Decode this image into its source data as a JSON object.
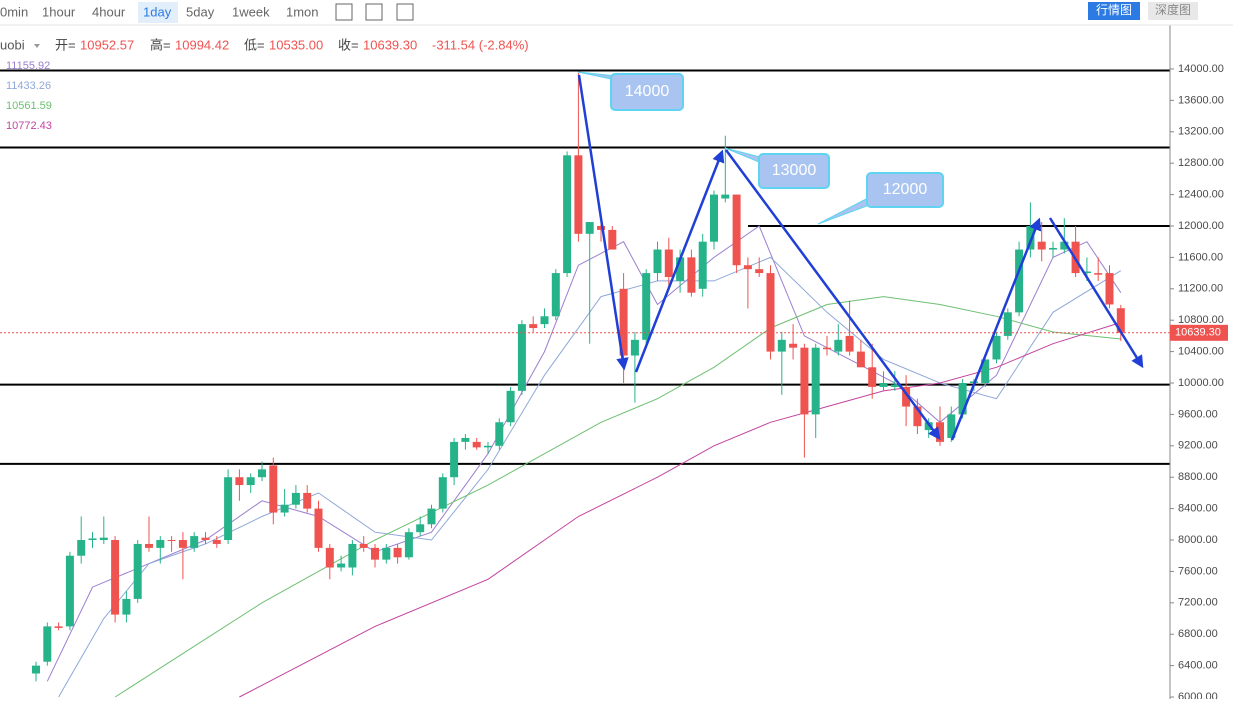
{
  "toolbar": {
    "intervals": [
      "0min",
      "1hour",
      "4hour",
      "1day",
      "5day",
      "1week",
      "1mon"
    ],
    "views": [
      "行情图",
      "深度图"
    ]
  },
  "header": {
    "exchange": "uobi",
    "labels": [
      "开=",
      "高=",
      "低=",
      "收="
    ],
    "values_text": [
      "10952.57",
      "10994.42",
      "10535.00",
      "10639.30"
    ],
    "change": "-311.54 (-2.84%)"
  },
  "chart_data": {
    "type": "candlestick",
    "up_color": "#26b38a",
    "down_color": "#ef5350",
    "ylim": [
      5975,
      14560
    ],
    "yticks": [
      {
        "value": 6000,
        "label": "6000.00"
      },
      {
        "value": 6400,
        "label": "6400.00"
      },
      {
        "value": 6800,
        "label": "6800.00"
      },
      {
        "value": 7200,
        "label": "7200.00"
      },
      {
        "value": 7600,
        "label": "7600.00"
      },
      {
        "value": 8000,
        "label": "8000.00"
      },
      {
        "value": 8400,
        "label": "8400.00"
      },
      {
        "value": 8800,
        "label": "8800.00"
      },
      {
        "value": 9200,
        "label": "9200.00"
      },
      {
        "value": 9600,
        "label": "9600.00"
      },
      {
        "value": 10000,
        "label": "10000.00"
      },
      {
        "value": 10400,
        "label": "10400.00"
      },
      {
        "value": 10800,
        "label": "10800.00"
      },
      {
        "value": 11200,
        "label": "11200.00"
      },
      {
        "value": 11600,
        "label": "11600.00"
      },
      {
        "value": 12000,
        "label": "12000.00"
      },
      {
        "value": 12400,
        "label": "12400.00"
      },
      {
        "value": 12800,
        "label": "12800.00"
      },
      {
        "value": 13200,
        "label": "13200.00"
      },
      {
        "value": 13600,
        "label": "13600.00"
      },
      {
        "value": 14000,
        "label": "14000.00"
      }
    ],
    "open": [
      6300,
      6450,
      6900,
      6900,
      7800,
      8000,
      8000,
      8000,
      7050,
      7250,
      7950,
      7900,
      8000,
      8000,
      7900,
      8030,
      8000,
      8000,
      8800,
      8700,
      8800,
      8950,
      8350,
      8450,
      8600,
      8400,
      7900,
      7650,
      7650,
      7950,
      7900,
      7750,
      7900,
      7780,
      8100,
      8200,
      8400,
      8800,
      9250,
      9250,
      9180,
      9200,
      9500,
      9900,
      10750,
      10750,
      10850,
      11400,
      12900,
      11900,
      12000,
      11950,
      11200,
      10350,
      10550,
      11400,
      11700,
      11300,
      11600,
      11200,
      11800,
      12350,
      12400,
      11500,
      11450,
      11400,
      10400,
      10500,
      10450,
      9600,
      10450,
      10400,
      10600,
      10400,
      10200,
      9950,
      9950,
      9950,
      9700,
      9400,
      9500,
      9300,
      9600,
      10000,
      10000,
      10300,
      10600,
      10900,
      11700,
      11800,
      11700,
      11700,
      11800,
      11400,
      11400,
      11400,
      10952.57
    ],
    "high": [
      6450,
      6950,
      6950,
      7850,
      8300,
      8100,
      8300,
      8050,
      7350,
      8000,
      8300,
      8050,
      8050,
      8100,
      8100,
      8100,
      8050,
      8900,
      8900,
      8850,
      9000,
      9050,
      8650,
      8700,
      8700,
      8500,
      7950,
      7800,
      8000,
      8050,
      7950,
      7950,
      7950,
      8150,
      8300,
      8450,
      8850,
      9300,
      9350,
      9300,
      9250,
      9550,
      9950,
      10800,
      10850,
      10950,
      11450,
      12950,
      13950,
      12050,
      12050,
      12000,
      11400,
      10650,
      11450,
      11800,
      11850,
      11700,
      11700,
      11900,
      12450,
      13150,
      12400,
      11600,
      11600,
      11500,
      10650,
      10750,
      10500,
      10500,
      10600,
      10750,
      11050,
      10550,
      10500,
      10150,
      10150,
      10100,
      9800,
      9550,
      9700,
      9700,
      10050,
      10050,
      10350,
      10650,
      10950,
      11800,
      12300,
      12050,
      11800,
      12100,
      12000,
      11600,
      11600,
      11500,
      10994.42
    ],
    "low": [
      6200,
      6400,
      6850,
      6850,
      7700,
      7900,
      7950,
      6950,
      6950,
      7200,
      7850,
      7700,
      7850,
      7500,
      7850,
      7950,
      7900,
      7950,
      8500,
      8600,
      8750,
      8200,
      8300,
      8400,
      8350,
      7850,
      7500,
      7600,
      7550,
      7850,
      7650,
      7700,
      7700,
      7750,
      8050,
      8150,
      8350,
      8700,
      9150,
      9150,
      9100,
      9150,
      9450,
      9850,
      10650,
      10700,
      10800,
      11350,
      11800,
      10500,
      11800,
      11700,
      10000,
      9750,
      10500,
      11300,
      11200,
      11150,
      11100,
      11100,
      11700,
      12300,
      11400,
      10950,
      11350,
      10300,
      9850,
      10300,
      9050,
      9300,
      10350,
      10350,
      10350,
      10200,
      9800,
      9900,
      9900,
      9450,
      9350,
      9300,
      9200,
      9250,
      9550,
      9900,
      9950,
      10250,
      10550,
      10850,
      11600,
      11550,
      11600,
      11650,
      11350,
      11300,
      11300,
      10950,
      10535.0
    ],
    "close": [
      6400,
      6900,
      6880,
      7800,
      8000,
      8020,
      8030,
      7050,
      7250,
      7950,
      7900,
      8000,
      7990,
      7900,
      8050,
      8000,
      7950,
      8800,
      8700,
      8800,
      8900,
      8350,
      8450,
      8600,
      8400,
      7900,
      7650,
      7700,
      7950,
      7900,
      7750,
      7900,
      7780,
      8100,
      8200,
      8400,
      8800,
      9250,
      9300,
      9180,
      9200,
      9500,
      9900,
      10750,
      10700,
      10850,
      11400,
      12900,
      11900,
      12050,
      11950,
      11700,
      10350,
      10550,
      11400,
      11700,
      11350,
      11600,
      11150,
      11800,
      12400,
      12400,
      11500,
      11450,
      11400,
      10400,
      10550,
      10450,
      9600,
      10450,
      10430,
      10550,
      10400,
      10200,
      9950,
      10000,
      9980,
      9700,
      9450,
      9500,
      9250,
      9600,
      10000,
      10020,
      10300,
      10600,
      10900,
      11700,
      12000,
      11700,
      11720,
      11800,
      11400,
      11420,
      11380,
      11000,
      10639.3
    ],
    "series": [
      {
        "name": "11155.92",
        "color": "#9b7fd0",
        "x": [
          1,
          5,
          10,
          15,
          20,
          25,
          30,
          35,
          40,
          45,
          48,
          52,
          55,
          60,
          64,
          68,
          72,
          76,
          80,
          85,
          90,
          93,
          96
        ],
        "values": [
          6200,
          7400,
          7700,
          8000,
          8500,
          8300,
          7850,
          8100,
          9100,
          10400,
          11500,
          11800,
          11000,
          11600,
          12000,
          10600,
          10300,
          10000,
          9500,
          10100,
          11600,
          11800,
          11150
        ]
      },
      {
        "name": "11433.26",
        "color": "#8fa8d8",
        "x": [
          2,
          6,
          10,
          15,
          20,
          25,
          30,
          35,
          40,
          45,
          50,
          55,
          60,
          65,
          70,
          75,
          80,
          85,
          90,
          96
        ],
        "values": [
          6000,
          7000,
          7700,
          7950,
          8300,
          8600,
          8100,
          8000,
          8900,
          10100,
          11100,
          11300,
          11300,
          11600,
          10900,
          10300,
          10000,
          9800,
          10900,
          11430
        ]
      },
      {
        "name": "10561.59",
        "color": "#6dbf72",
        "x": [
          7,
          20,
          30,
          40,
          50,
          55,
          60,
          65,
          70,
          75,
          80,
          85,
          90,
          96
        ],
        "values": [
          6000,
          7200,
          8000,
          8700,
          9500,
          9800,
          10200,
          10700,
          11000,
          11100,
          11000,
          10850,
          10650,
          10560
        ]
      },
      {
        "name": "10772.43",
        "color": "#c2449f",
        "x": [
          18,
          30,
          40,
          48,
          55,
          60,
          65,
          70,
          75,
          80,
          85,
          90,
          96
        ],
        "values": [
          6000,
          6900,
          7500,
          8300,
          8800,
          9200,
          9500,
          9700,
          9900,
          10000,
          10200,
          10500,
          10770
        ]
      }
    ],
    "levels": [
      13980,
      13000,
      12000,
      9980,
      8970
    ],
    "last_price": 10639.3,
    "last_price_label": "10639.30",
    "annotations": [
      "14000",
      "13000",
      "12000"
    ]
  }
}
